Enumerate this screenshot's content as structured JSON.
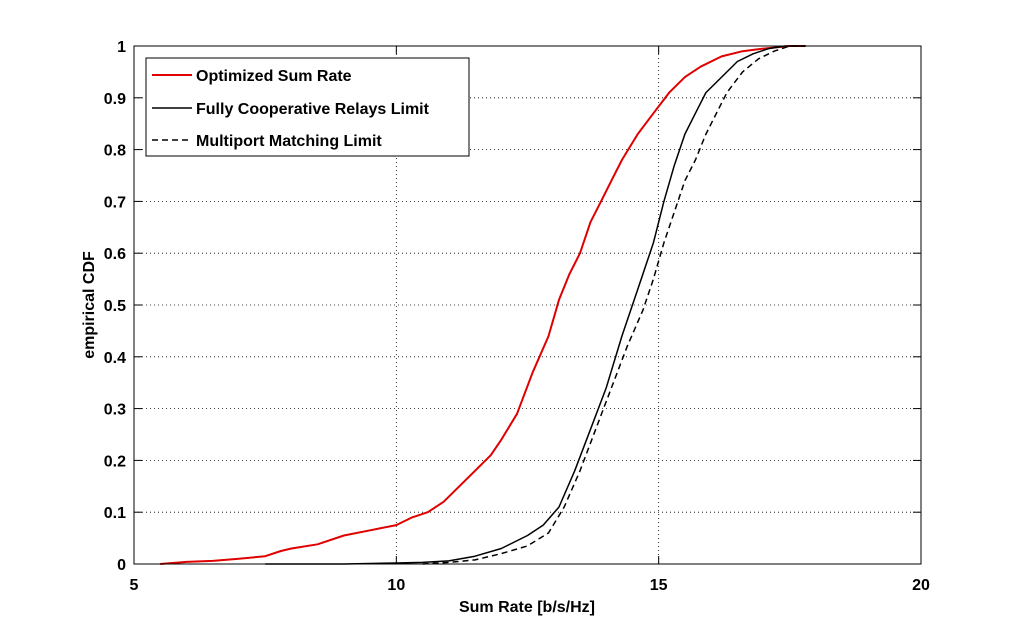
{
  "chart_data": {
    "type": "line",
    "title": "",
    "xlabel": "Sum Rate [b/s/Hz]",
    "ylabel": "empirical CDF",
    "xlim": [
      5,
      20
    ],
    "ylim": [
      0,
      1
    ],
    "grid": true,
    "legend_position": "top-left",
    "xticks": [
      "5",
      "10",
      "15",
      "20"
    ],
    "yticks": [
      "0",
      "0.1",
      "0.2",
      "0.3",
      "0.4",
      "0.5",
      "0.6",
      "0.7",
      "0.8",
      "0.9",
      "1"
    ],
    "series": [
      {
        "name": "Optimized Sum Rate",
        "color": "#e00000",
        "style": "solid",
        "x": [
          5.5,
          6.0,
          6.5,
          7.0,
          7.5,
          7.8,
          8.0,
          8.5,
          9.0,
          9.5,
          10.0,
          10.3,
          10.6,
          10.9,
          11.2,
          11.5,
          11.8,
          12.0,
          12.3,
          12.6,
          12.9,
          13.1,
          13.3,
          13.5,
          13.7,
          13.9,
          14.1,
          14.3,
          14.6,
          14.9,
          15.2,
          15.5,
          15.8,
          16.2,
          16.6,
          17.0,
          17.5,
          17.8
        ],
        "y": [
          0.0,
          0.004,
          0.006,
          0.01,
          0.015,
          0.025,
          0.03,
          0.038,
          0.055,
          0.065,
          0.075,
          0.09,
          0.1,
          0.12,
          0.15,
          0.18,
          0.21,
          0.24,
          0.29,
          0.37,
          0.44,
          0.51,
          0.56,
          0.6,
          0.66,
          0.7,
          0.74,
          0.78,
          0.83,
          0.87,
          0.91,
          0.94,
          0.96,
          0.98,
          0.99,
          0.995,
          1.0,
          1.0
        ]
      },
      {
        "name": "Fully Cooperative Relays Limit",
        "color": "#000000",
        "style": "solid",
        "x": [
          7.5,
          9.0,
          10.0,
          10.5,
          11.0,
          11.5,
          12.0,
          12.5,
          12.8,
          13.1,
          13.4,
          13.7,
          14.0,
          14.3,
          14.6,
          14.9,
          15.1,
          15.3,
          15.5,
          15.7,
          15.9,
          16.2,
          16.5,
          16.8,
          17.1,
          17.4,
          17.8
        ],
        "y": [
          0.0,
          0.0,
          0.002,
          0.003,
          0.006,
          0.015,
          0.03,
          0.055,
          0.075,
          0.11,
          0.18,
          0.26,
          0.34,
          0.44,
          0.53,
          0.62,
          0.7,
          0.77,
          0.83,
          0.87,
          0.91,
          0.94,
          0.97,
          0.985,
          0.995,
          1.0,
          1.0
        ]
      },
      {
        "name": "Multiport Matching Limit",
        "color": "#000000",
        "style": "dashed",
        "x": [
          10.5,
          11.0,
          11.5,
          12.0,
          12.5,
          12.9,
          13.2,
          13.5,
          13.8,
          14.1,
          14.4,
          14.7,
          14.9,
          15.1,
          15.3,
          15.5,
          15.7,
          15.9,
          16.1,
          16.3,
          16.6,
          16.9,
          17.2,
          17.5,
          17.8
        ],
        "y": [
          0.0,
          0.003,
          0.008,
          0.02,
          0.035,
          0.06,
          0.11,
          0.18,
          0.26,
          0.34,
          0.42,
          0.49,
          0.55,
          0.62,
          0.68,
          0.74,
          0.78,
          0.83,
          0.87,
          0.91,
          0.95,
          0.975,
          0.99,
          1.0,
          1.0
        ]
      }
    ]
  }
}
